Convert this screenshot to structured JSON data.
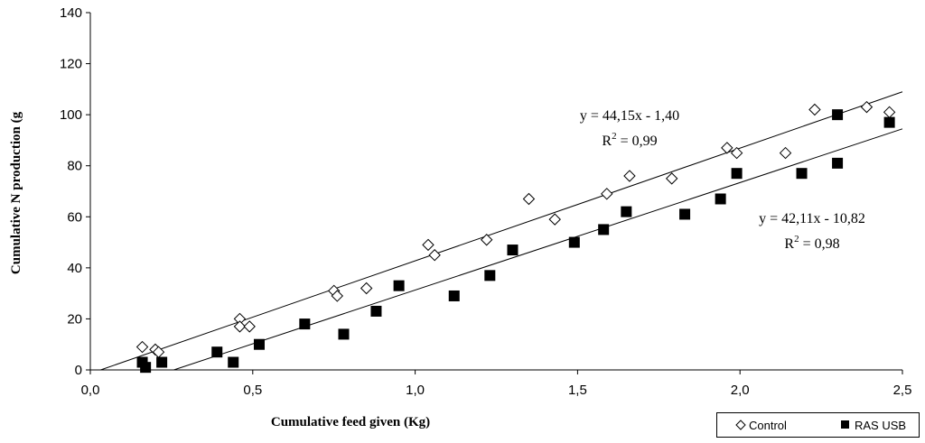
{
  "chart_data": {
    "type": "scatter",
    "xlabel": "Cumulative feed given (Kg)",
    "ylabel": "Cumulative N production (g",
    "xlim": [
      0,
      2.5
    ],
    "ylim": [
      0,
      140
    ],
    "x_ticks": [
      "0,0",
      "0,5",
      "1,0",
      "1,5",
      "2,0",
      "2,5"
    ],
    "x_tick_values": [
      0,
      0.5,
      1.0,
      1.5,
      2.0,
      2.5
    ],
    "y_ticks": [
      "0",
      "20",
      "40",
      "60",
      "80",
      "100",
      "120",
      "140"
    ],
    "y_tick_values": [
      0,
      20,
      40,
      60,
      80,
      100,
      120,
      140
    ],
    "grid": false,
    "legend_position": "bottom-right",
    "series": [
      {
        "name": "Control",
        "marker": "diamond-open",
        "color": "#000000",
        "x": [
          0.16,
          0.2,
          0.21,
          0.46,
          0.46,
          0.49,
          0.75,
          0.76,
          0.85,
          1.04,
          1.06,
          1.22,
          1.35,
          1.43,
          1.59,
          1.66,
          1.79,
          1.96,
          1.99,
          2.14,
          2.23,
          2.39,
          2.46
        ],
        "y": [
          9,
          8,
          7,
          20,
          17,
          17,
          31,
          29,
          32,
          49,
          45,
          51,
          67,
          59,
          69,
          76,
          75,
          87,
          85,
          85,
          102,
          103,
          101
        ],
        "trendline": {
          "slope": 44.15,
          "intercept": -1.4
        }
      },
      {
        "name": "RAS USB",
        "marker": "square-filled",
        "color": "#000000",
        "x": [
          0.16,
          0.17,
          0.22,
          0.39,
          0.44,
          0.52,
          0.66,
          0.78,
          0.88,
          0.95,
          1.12,
          1.23,
          1.3,
          1.49,
          1.58,
          1.65,
          1.83,
          1.94,
          1.99,
          2.19,
          2.3,
          2.3,
          2.46
        ],
        "y": [
          3,
          1,
          3,
          7,
          3,
          10,
          18,
          14,
          23,
          33,
          29,
          37,
          47,
          50,
          55,
          62,
          61,
          67,
          77,
          77,
          100,
          81,
          97
        ],
        "trendline": {
          "slope": 42.11,
          "intercept": -10.82
        }
      }
    ],
    "annotations": [
      {
        "series": "Control",
        "equation": "y = 44,15x - 1,40",
        "r2_label": "R",
        "r2_exp": "2",
        "r2_value": " = 0,99"
      },
      {
        "series": "RAS USB",
        "equation": "y = 42,11x - 10,82",
        "r2_label": "R",
        "r2_exp": "2",
        "r2_value": " = 0,98"
      }
    ]
  }
}
